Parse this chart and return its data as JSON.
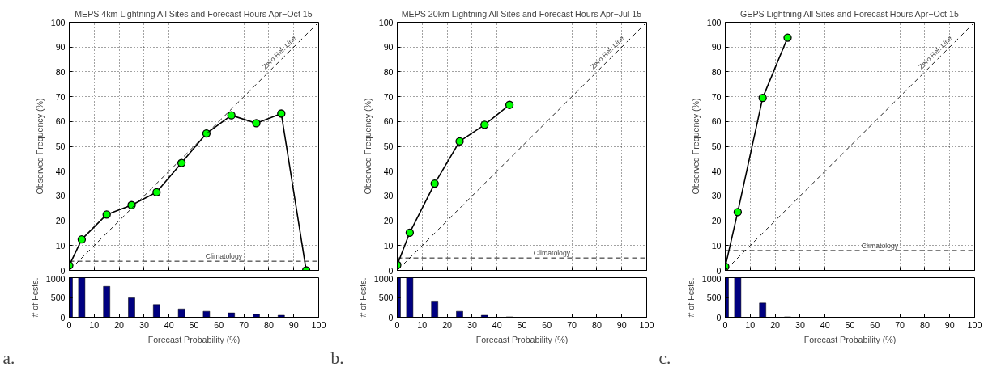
{
  "chart_data": [
    {
      "type": "line",
      "title": "MEPS 4km Lightning All Sites and Forecast Hours Apr−Oct 15",
      "ylabel": "Observed Frequency (%)",
      "xlim": [
        0,
        100
      ],
      "ylim": [
        0,
        100
      ],
      "xticks": [
        0,
        10,
        20,
        30,
        40,
        50,
        60,
        70,
        80,
        90,
        100
      ],
      "yticks": [
        0,
        10,
        20,
        30,
        40,
        50,
        60,
        70,
        80,
        90,
        100
      ],
      "grid": true,
      "tick_labels": "y",
      "marker": "circle",
      "series": [
        {
          "color": "#000000",
          "colors": [
            "#00ff00",
            "#00ff00",
            "#00ff00",
            "#00ff00",
            "#00ff00",
            "#00ff00",
            "#00ff00",
            "#00ff00",
            "#00ff00",
            "#00ff00",
            "#00ff00"
          ],
          "x": [
            0,
            5,
            15,
            25,
            35,
            45,
            55,
            65,
            75,
            85,
            95
          ],
          "values": [
            2,
            12.5,
            22.5,
            26.3,
            31.5,
            43.3,
            55.2,
            62.5,
            59.3,
            63.2,
            0
          ]
        },
        {
          "name": "Zero Rel. Line",
          "type": "line",
          "color": "#000000",
          "line_style": "dashed",
          "marker": "none",
          "x": [
            0,
            100
          ],
          "values": [
            0,
            100
          ]
        }
      ],
      "ref_lines": [
        {
          "axis": "y",
          "value": 3.7,
          "label": "Climatology",
          "line_style": "dashed",
          "color": "#000000"
        }
      ]
    },
    {
      "type": "bar",
      "xlabel": "Forecast Probability (%)",
      "ylabel": "# of Fcsts.",
      "xlim": [
        0,
        100
      ],
      "ylim": [
        0,
        1000
      ],
      "xticks": [
        0,
        10,
        20,
        30,
        40,
        50,
        60,
        70,
        80,
        90,
        100
      ],
      "yticks": [
        0,
        500,
        1000
      ],
      "x": [
        0,
        5,
        15,
        25,
        35,
        45,
        55,
        65,
        75,
        85
      ],
      "values": [
        1000,
        1000,
        780,
        490,
        320,
        210,
        150,
        110,
        70,
        50
      ],
      "color": "#000080",
      "annotations": [
        "a."
      ]
    },
    {
      "type": "line",
      "title": "MEPS 20km Lightning All Sites and Forecast Hours Apr−Jul 15",
      "ylabel": "Observed Frequency (%)",
      "xlim": [
        0,
        100
      ],
      "ylim": [
        0,
        100
      ],
      "xticks": [
        0,
        10,
        20,
        30,
        40,
        50,
        60,
        70,
        80,
        90,
        100
      ],
      "yticks": [
        0,
        10,
        20,
        30,
        40,
        50,
        60,
        70,
        80,
        90,
        100
      ],
      "grid": true,
      "tick_labels": "y",
      "marker": "circle",
      "series": [
        {
          "color": "#000000",
          "colors": [
            "#00ff00",
            "#00ff00",
            "#00ff00",
            "#00ff00",
            "#00ff00",
            "#00ff00"
          ],
          "x": [
            0,
            5,
            15,
            25,
            35,
            45
          ],
          "values": [
            2.2,
            15.2,
            35,
            52,
            58.7,
            66.7
          ]
        },
        {
          "name": "Zero Rel. Line",
          "type": "line",
          "color": "#000000",
          "line_style": "dashed",
          "marker": "none",
          "x": [
            0,
            100
          ],
          "values": [
            0,
            100
          ]
        }
      ],
      "ref_lines": [
        {
          "axis": "y",
          "value": 5,
          "label": "Climatology",
          "line_style": "dashed",
          "color": "#000000"
        }
      ]
    },
    {
      "type": "bar",
      "xlabel": "Forecast Probability (%)",
      "ylabel": "# of Fcsts.",
      "xlim": [
        0,
        100
      ],
      "ylim": [
        0,
        1000
      ],
      "xticks": [
        0,
        10,
        20,
        30,
        40,
        50,
        60,
        70,
        80,
        90,
        100
      ],
      "yticks": [
        0,
        500,
        1000
      ],
      "x": [
        0,
        5,
        15,
        25,
        35,
        45
      ],
      "values": [
        1000,
        1000,
        410,
        150,
        50,
        10
      ],
      "color": "#000080",
      "annotations": [
        "b."
      ]
    },
    {
      "type": "line",
      "title": "GEPS Lightning All Sites and Forecast Hours Apr−Oct 15",
      "ylabel": "Observed Frequency (%)",
      "xlim": [
        0,
        100
      ],
      "ylim": [
        0,
        100
      ],
      "xticks": [
        0,
        10,
        20,
        30,
        40,
        50,
        60,
        70,
        80,
        90,
        100
      ],
      "yticks": [
        0,
        10,
        20,
        30,
        40,
        50,
        60,
        70,
        80,
        90,
        100
      ],
      "grid": true,
      "tick_labels": "y",
      "marker": "circle",
      "series": [
        {
          "color": "#000000",
          "colors": [
            "#00ff00",
            "#00ff00",
            "#00ff00",
            "#00ff00"
          ],
          "x": [
            0,
            5,
            15,
            25
          ],
          "values": [
            1.5,
            23.5,
            69.5,
            93.8
          ]
        },
        {
          "name": "Zero Rel. Line",
          "type": "line",
          "color": "#000000",
          "line_style": "dashed",
          "marker": "none",
          "x": [
            0,
            100
          ],
          "values": [
            0,
            100
          ]
        }
      ],
      "ref_lines": [
        {
          "axis": "y",
          "value": 8,
          "label": "Climatology",
          "line_style": "dashed",
          "color": "#000000"
        }
      ]
    },
    {
      "type": "bar",
      "xlabel": "Forecast Probability (%)",
      "ylabel": "# of Fcsts.",
      "xlim": [
        0,
        100
      ],
      "ylim": [
        0,
        1000
      ],
      "xticks": [
        0,
        10,
        20,
        30,
        40,
        50,
        60,
        70,
        80,
        90,
        100
      ],
      "yticks": [
        0,
        500,
        1000
      ],
      "x": [
        0,
        5,
        15,
        25
      ],
      "values": [
        1000,
        1000,
        360,
        10
      ],
      "color": "#000080",
      "annotations": [
        "c."
      ]
    }
  ]
}
